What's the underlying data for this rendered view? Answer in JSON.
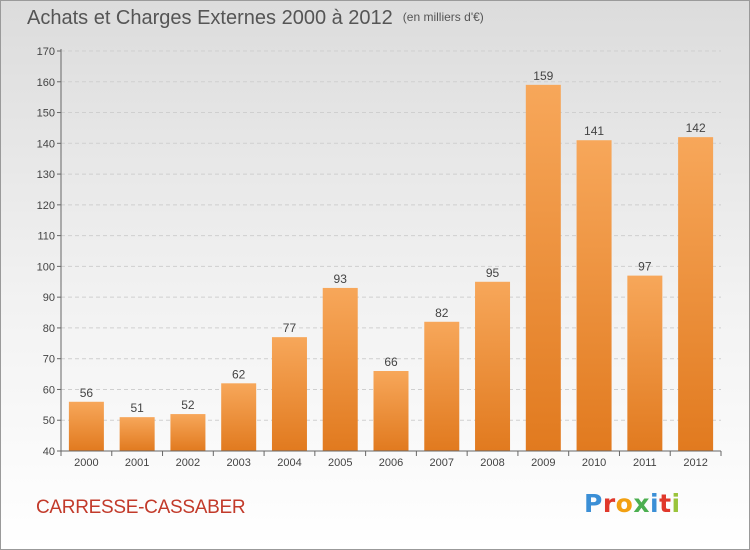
{
  "title": "Achats et Charges Externes 2000 à 2012",
  "unit": "(en milliers d'€)",
  "location": "CARRESSE-CASSABER",
  "brand": "Proxiti",
  "colors": {
    "bar_light": "#f7a75a",
    "bar_dark": "#e17a1f",
    "axis": "#666666",
    "grid": "#cfcfcf",
    "location_text": "#c23a2a",
    "logo_letters": [
      "#3b8fd6",
      "#e0382b",
      "#f2a011",
      "#4caf50",
      "#3b8fd6",
      "#e0382b",
      "#9ac43b"
    ]
  },
  "chart_data": {
    "type": "bar",
    "categories": [
      "2000",
      "2001",
      "2002",
      "2003",
      "2004",
      "2005",
      "2006",
      "2007",
      "2008",
      "2009",
      "2010",
      "2011",
      "2012"
    ],
    "values": [
      56,
      51,
      52,
      62,
      77,
      93,
      66,
      82,
      95,
      159,
      141,
      97,
      142
    ],
    "data_labels": [
      "56",
      "51",
      "52",
      "62",
      "77",
      "93",
      "66",
      "82",
      "95",
      "159",
      "141",
      "97",
      "142"
    ],
    "ylim": [
      40,
      170
    ],
    "yticks": [
      40,
      50,
      60,
      70,
      80,
      90,
      100,
      110,
      120,
      130,
      140,
      150,
      160,
      170
    ],
    "xlabel": "",
    "ylabel": "",
    "grid": true,
    "legend": "none"
  }
}
